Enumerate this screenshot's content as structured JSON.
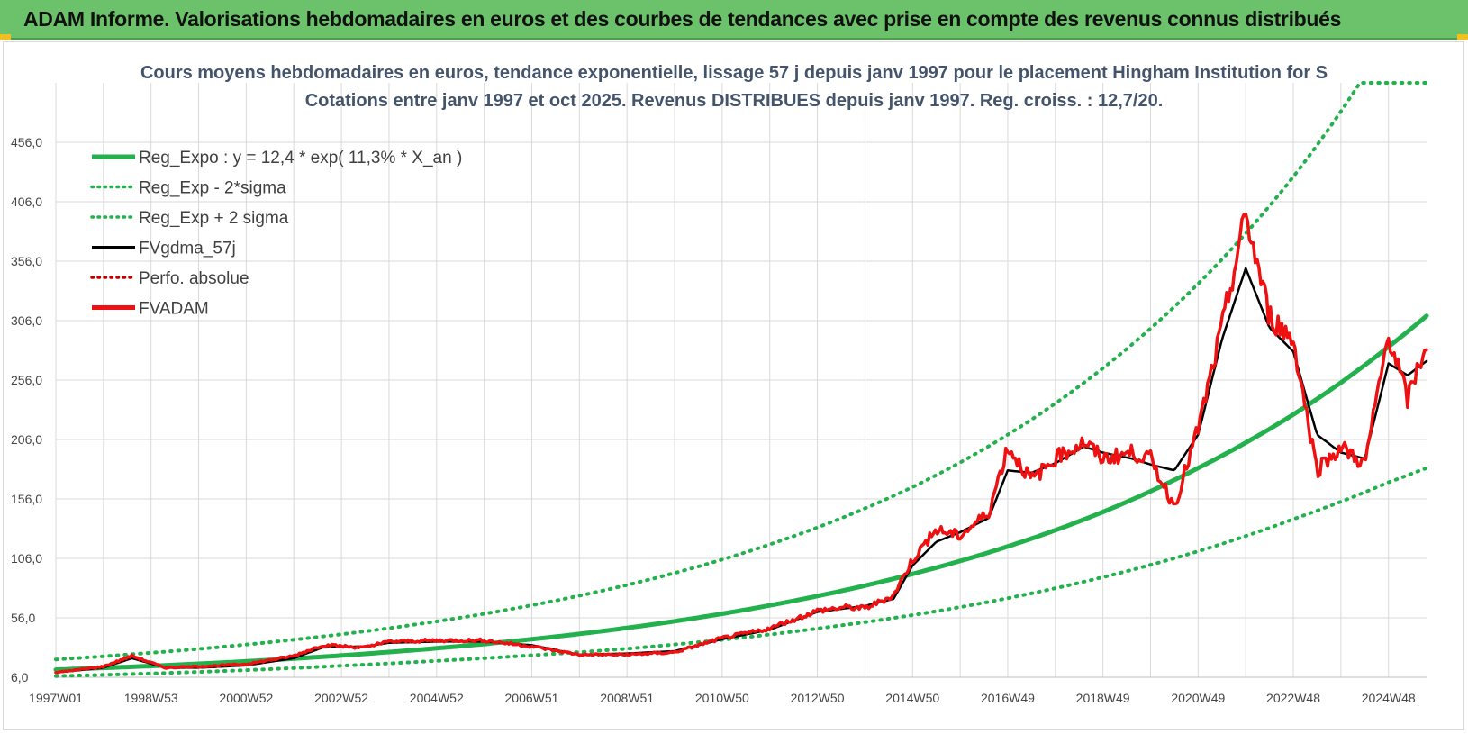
{
  "header": {
    "title": "ADAM Informe. Valorisations hebdomadaires en euros et des courbes de tendances avec prise en compte des revenus connus distribués"
  },
  "colors": {
    "banner": "#6cc26a",
    "reg_expo": "#22b14c",
    "sigma": "#22b14c",
    "fvgdma": "#000000",
    "perfo": "#c00000",
    "fvadam": "#ee1111",
    "grid": "#d9d9d9"
  },
  "chart_data": {
    "type": "line",
    "title": "Cours moyens hebdomadaires en euros, tendance exponentielle, lissage 57 j depuis janv 1997  pour le placement Hingham Institution for S",
    "subtitle": "Cotations entre janv 1997 et oct 2025. Revenus DISTRIBUES depuis janv 1997.  Reg. croiss. : 12,7/20.",
    "x_range": [
      1997.0,
      2025.8
    ],
    "ylim": [
      6.0,
      506.0
    ],
    "y_ticks": [
      "6,0",
      "56,0",
      "106,0",
      "156,0",
      "206,0",
      "256,0",
      "306,0",
      "356,0",
      "406,0",
      "456,0"
    ],
    "x_ticks": [
      {
        "label": "1997W01",
        "x": 1997.0
      },
      {
        "label": "1998W53",
        "x": 1999.0
      },
      {
        "label": "2000W52",
        "x": 2001.0
      },
      {
        "label": "2002W52",
        "x": 2003.0
      },
      {
        "label": "2004W52",
        "x": 2005.0
      },
      {
        "label": "2006W51",
        "x": 2007.0
      },
      {
        "label": "2008W51",
        "x": 2009.0
      },
      {
        "label": "2010W50",
        "x": 2011.0
      },
      {
        "label": "2012W50",
        "x": 2013.0
      },
      {
        "label": "2014W50",
        "x": 2015.0
      },
      {
        "label": "2016W49",
        "x": 2017.0
      },
      {
        "label": "2018W49",
        "x": 2019.0
      },
      {
        "label": "2020W49",
        "x": 2021.0
      },
      {
        "label": "2022W48",
        "x": 2023.0
      },
      {
        "label": "2024W48",
        "x": 2025.0
      }
    ],
    "legend": [
      {
        "label": "Reg_Expo : y = 12,4 * exp( 11,3% *  X_an )",
        "style": "solid-thick",
        "color": "#22b14c"
      },
      {
        "label": "Reg_Exp - 2*sigma",
        "style": "dotted",
        "color": "#22b14c"
      },
      {
        "label": "Reg_Exp + 2 sigma",
        "style": "dotted",
        "color": "#22b14c"
      },
      {
        "label": "FVgdma_57j",
        "style": "solid",
        "color": "#000000"
      },
      {
        "label": "Perfo. absolue",
        "style": "dotted",
        "color": "#c00000"
      },
      {
        "label": "FVADAM",
        "style": "solid-thick",
        "color": "#ee1111"
      }
    ],
    "series": [
      {
        "name": "Reg_Expo",
        "x": [
          1997.0,
          1999.0,
          2001.0,
          2003.0,
          2005.0,
          2007.0,
          2009.0,
          2011.0,
          2013.0,
          2015.0,
          2017.0,
          2019.0,
          2021.0,
          2023.0,
          2025.0,
          2025.8
        ],
        "values": [
          12.4,
          15.5,
          19.4,
          24.3,
          30.4,
          38.0,
          47.5,
          59.4,
          74.3,
          92.9,
          116.0,
          145.0,
          182.0,
          227.0,
          284.0,
          310.0
        ]
      },
      {
        "name": "Reg_Exp - 2*sigma",
        "x": [
          1997.0,
          1999.0,
          2001.0,
          2003.0,
          2005.0,
          2007.0,
          2009.0,
          2011.0,
          2013.0,
          2015.0,
          2017.0,
          2019.0,
          2021.0,
          2023.0,
          2025.0,
          2025.8
        ],
        "values": [
          7.0,
          9.2,
          12.0,
          15.7,
          19.8,
          24.5,
          30.0,
          37.5,
          47.0,
          58.3,
          72.5,
          90.2,
          112.0,
          139.0,
          170.0,
          182.0
        ]
      },
      {
        "name": "Reg_Exp + 2 sigma",
        "x": [
          1997.0,
          1999.0,
          2001.0,
          2003.0,
          2005.0,
          2007.0,
          2009.0,
          2011.0,
          2013.0,
          2015.0,
          2017.0,
          2019.0,
          2021.0,
          2023.0,
          2024.4,
          2025.8
        ],
        "values": [
          21.0,
          26.6,
          33.5,
          42.2,
          53.0,
          66.6,
          83.6,
          105.0,
          132.0,
          166.0,
          210.0,
          266.0,
          337.0,
          427.0,
          506.0,
          506.0
        ]
      },
      {
        "name": "FVgdma_57j",
        "x": [
          1997.0,
          1998.0,
          1998.6,
          1999.3,
          2000.0,
          2001.0,
          2002.0,
          2002.6,
          2003.5,
          2004.0,
          2005.0,
          2006.0,
          2007.0,
          2008.0,
          2009.0,
          2010.0,
          2011.0,
          2012.0,
          2013.0,
          2013.6,
          2014.0,
          2014.6,
          2015.0,
          2015.5,
          2016.0,
          2016.6,
          2017.0,
          2017.5,
          2018.0,
          2018.6,
          2019.0,
          2019.6,
          2020.0,
          2020.5,
          2021.0,
          2021.5,
          2022.0,
          2022.5,
          2023.0,
          2023.5,
          2024.0,
          2024.5,
          2025.0,
          2025.4,
          2025.8
        ],
        "values": [
          10,
          14,
          22,
          14,
          14,
          16,
          22,
          31,
          32,
          35,
          36,
          36,
          33,
          25,
          26,
          28,
          38,
          46,
          61,
          64,
          66,
          72,
          100,
          120,
          128,
          140,
          180,
          178,
          186,
          200,
          195,
          190,
          185,
          180,
          210,
          290,
          350,
          300,
          280,
          210,
          195,
          190,
          270,
          260,
          272
        ]
      },
      {
        "name": "FVADAM",
        "x": [
          1997.0,
          1998.0,
          1998.6,
          1999.3,
          2000.0,
          2001.0,
          2002.0,
          2002.6,
          2003.5,
          2004.0,
          2005.0,
          2006.0,
          2007.0,
          2008.0,
          2009.0,
          2010.0,
          2011.0,
          2012.0,
          2013.0,
          2013.6,
          2014.0,
          2014.6,
          2015.0,
          2015.5,
          2016.0,
          2016.6,
          2017.0,
          2017.5,
          2018.0,
          2018.6,
          2019.0,
          2019.6,
          2020.0,
          2020.5,
          2021.0,
          2021.5,
          2022.0,
          2022.5,
          2023.0,
          2023.5,
          2024.0,
          2024.5,
          2025.0,
          2025.4,
          2025.8
        ],
        "values": [
          10,
          15,
          24,
          14,
          15,
          17,
          24,
          33,
          31,
          36,
          37,
          37,
          32,
          25,
          25,
          27,
          39,
          47,
          62,
          65,
          64,
          75,
          105,
          130,
          125,
          145,
          200,
          172,
          190,
          204,
          190,
          195,
          190,
          150,
          215,
          300,
          395,
          310,
          290,
          180,
          200,
          185,
          295,
          240,
          288
        ]
      }
    ]
  }
}
